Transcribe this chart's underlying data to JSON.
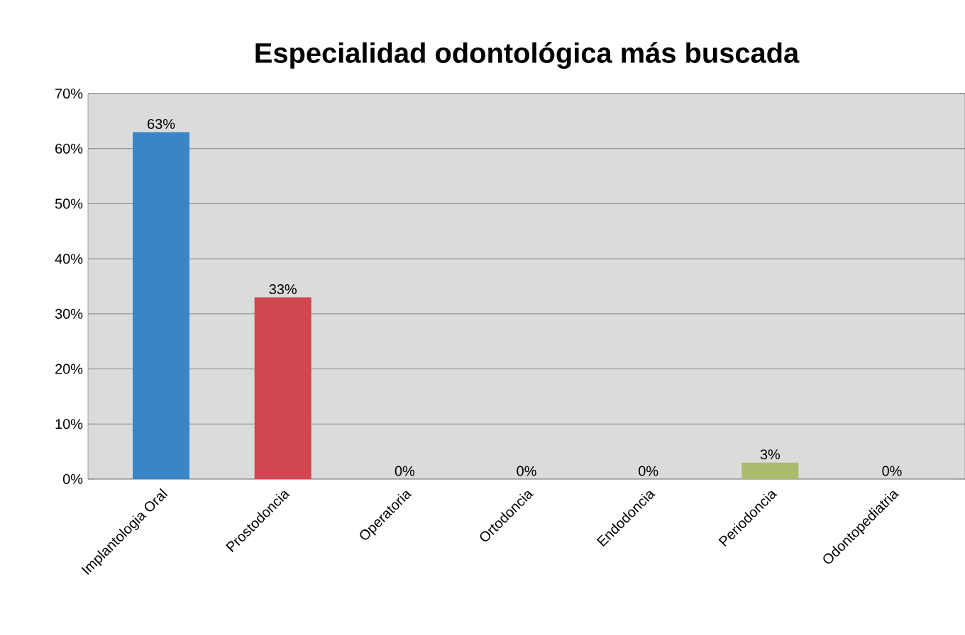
{
  "chart_data": {
    "type": "bar",
    "title": "Especialidad odontológica más buscada",
    "categories": [
      "Implantologia Oral",
      "Prostodoncia",
      "Operatoria",
      "Ortodoncia",
      "Endodoncia",
      "Periodoncia",
      "Odontopediatria"
    ],
    "values": [
      63,
      33,
      0,
      0,
      0,
      3,
      0
    ],
    "value_labels": [
      "63%",
      "33%",
      "0%",
      "0%",
      "0%",
      "3%",
      "0%"
    ],
    "colors": [
      "#3a85c8",
      "#d0474f",
      "#9bbb59",
      "#8064a2",
      "#4bacc6",
      "#a9bb6c",
      "#f79646"
    ],
    "ylim": [
      0,
      70
    ],
    "yticks": [
      {
        "value": 0,
        "label": "0%"
      },
      {
        "value": 10,
        "label": "10%"
      },
      {
        "value": 20,
        "label": "20%"
      },
      {
        "value": 30,
        "label": "30%"
      },
      {
        "value": 40,
        "label": "40%"
      },
      {
        "value": 50,
        "label": "50%"
      },
      {
        "value": 60,
        "label": "60%"
      },
      {
        "value": 70,
        "label": "70%"
      }
    ],
    "grid": "y"
  }
}
